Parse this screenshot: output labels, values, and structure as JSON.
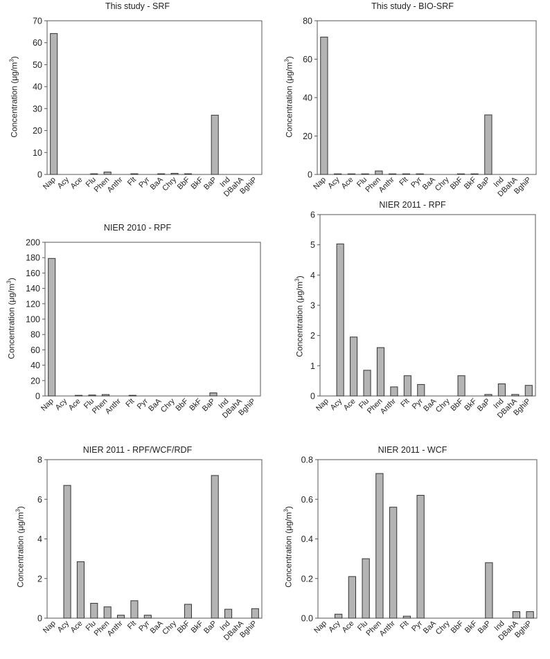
{
  "chart_data": [
    {
      "type": "bar",
      "title": "This study - SRF",
      "ylabel": "Concentration (μg/m",
      "ylabel_sup": "3",
      "ylabel_close": ")",
      "ylim": [
        0,
        70
      ],
      "yticks": [
        0,
        10,
        20,
        30,
        40,
        50,
        60,
        70
      ],
      "categories": [
        "Nap",
        "Acy",
        "Ace",
        "Flu",
        "Phen",
        "Anthr",
        "Flt",
        "Pyr",
        "BaA",
        "Chry",
        "BbF",
        "BkF",
        "BaP",
        "Ind",
        "DBahA",
        "BghiP"
      ],
      "values": [
        64.2,
        0,
        0,
        0.3,
        1.1,
        0,
        0.3,
        0,
        0.3,
        0.5,
        0.3,
        0,
        27,
        0,
        0,
        0
      ]
    },
    {
      "type": "bar",
      "title": "This study - BIO-SRF",
      "ylabel": "Concentration (μg/m",
      "ylabel_sup": "3",
      "ylabel_close": ")",
      "ylim": [
        0,
        80
      ],
      "yticks": [
        0,
        20,
        40,
        60,
        80
      ],
      "categories": [
        "Nap",
        "Acy",
        "Ace",
        "Flu",
        "Phen",
        "Anthr",
        "Flt",
        "Pyr",
        "BaA",
        "Chry",
        "BbF",
        "BkF",
        "BaP",
        "Ind",
        "DBahA",
        "BghiP"
      ],
      "values": [
        71.5,
        0.3,
        0.3,
        0.3,
        1.8,
        0.3,
        0.3,
        0.3,
        0,
        0,
        0.3,
        0.3,
        31,
        0,
        0,
        0
      ]
    },
    {
      "type": "bar",
      "title": "NIER 2010 - RPF",
      "ylabel": "Concentration (μg/m",
      "ylabel_sup": "3",
      "ylabel_close": ")",
      "ylim": [
        0,
        200
      ],
      "yticks": [
        0,
        20,
        40,
        60,
        80,
        100,
        120,
        140,
        160,
        180,
        200
      ],
      "categories": [
        "Nap",
        "Acy",
        "Ace",
        "Flu",
        "Phen",
        "Anthr",
        "Flt",
        "Pyr",
        "BaA",
        "Chry",
        "BbF",
        "BkF",
        "BaP",
        "Ind",
        "DBahA",
        "BghiP"
      ],
      "values": [
        179,
        0,
        0.8,
        1.2,
        1.8,
        0,
        0.8,
        0,
        0,
        0,
        0,
        0,
        4,
        0,
        0,
        0
      ]
    },
    {
      "type": "bar",
      "title": "NIER 2011 - RPF",
      "ylabel": "Concentration (μg/m",
      "ylabel_sup": "3",
      "ylabel_close": ")",
      "ylim": [
        0,
        6
      ],
      "yticks": [
        0,
        1,
        2,
        3,
        4,
        5,
        6
      ],
      "categories": [
        "Nap",
        "Acy",
        "Ace",
        "Flu",
        "Phen",
        "Anthr",
        "Flt",
        "Pyr",
        "BaA",
        "Chry",
        "BbF",
        "BkF",
        "BaP",
        "Ind",
        "DBahA",
        "BghiP"
      ],
      "values": [
        0,
        5.03,
        1.95,
        0.85,
        1.6,
        0.3,
        0.67,
        0.38,
        0,
        0,
        0.67,
        0,
        0.05,
        0.4,
        0.05,
        0.35
      ]
    },
    {
      "type": "bar",
      "title": "NIER 2011 - RPF/WCF/RDF",
      "ylabel": "Concentration (μg/m",
      "ylabel_sup": "3",
      "ylabel_close": ")",
      "ylim": [
        0,
        8
      ],
      "yticks": [
        0,
        2,
        4,
        6,
        8
      ],
      "categories": [
        "Nap",
        "Acy",
        "Ace",
        "Flu",
        "Phen",
        "Anthr",
        "Flt",
        "Pyr",
        "BaA",
        "Chry",
        "BbF",
        "BkF",
        "BaP",
        "Ind",
        "DBahA",
        "BghiP"
      ],
      "values": [
        0,
        6.7,
        2.85,
        0.75,
        0.57,
        0.15,
        0.88,
        0.15,
        0,
        0,
        0.7,
        0,
        7.2,
        0.45,
        0,
        0.48
      ]
    },
    {
      "type": "bar",
      "title": "NIER 2011 - WCF",
      "ylabel": "Concentration (μg/m",
      "ylabel_sup": "3",
      "ylabel_close": ")",
      "ylim": [
        0,
        0.8
      ],
      "yticks": [
        0,
        0.2,
        0.4,
        0.6,
        0.8
      ],
      "yticklabels": [
        "0.0",
        "0.2",
        "0.4",
        "0.6",
        "0.8"
      ],
      "categories": [
        "Nap",
        "Acy",
        "Ace",
        "Flu",
        "Phen",
        "Anthr",
        "Flt",
        "Pyr",
        "BaA",
        "Chry",
        "BbF",
        "BkF",
        "BaP",
        "Ind",
        "DBahA",
        "BghiP"
      ],
      "values": [
        0,
        0.02,
        0.21,
        0.3,
        0.73,
        0.56,
        0.01,
        0.62,
        0,
        0,
        0,
        0,
        0.28,
        0,
        0.033,
        0.033
      ]
    }
  ],
  "colors": {
    "bar_fill": "#b4b4b4",
    "bar_stroke": "#333333",
    "axis": "#555555",
    "text": "#222222"
  }
}
